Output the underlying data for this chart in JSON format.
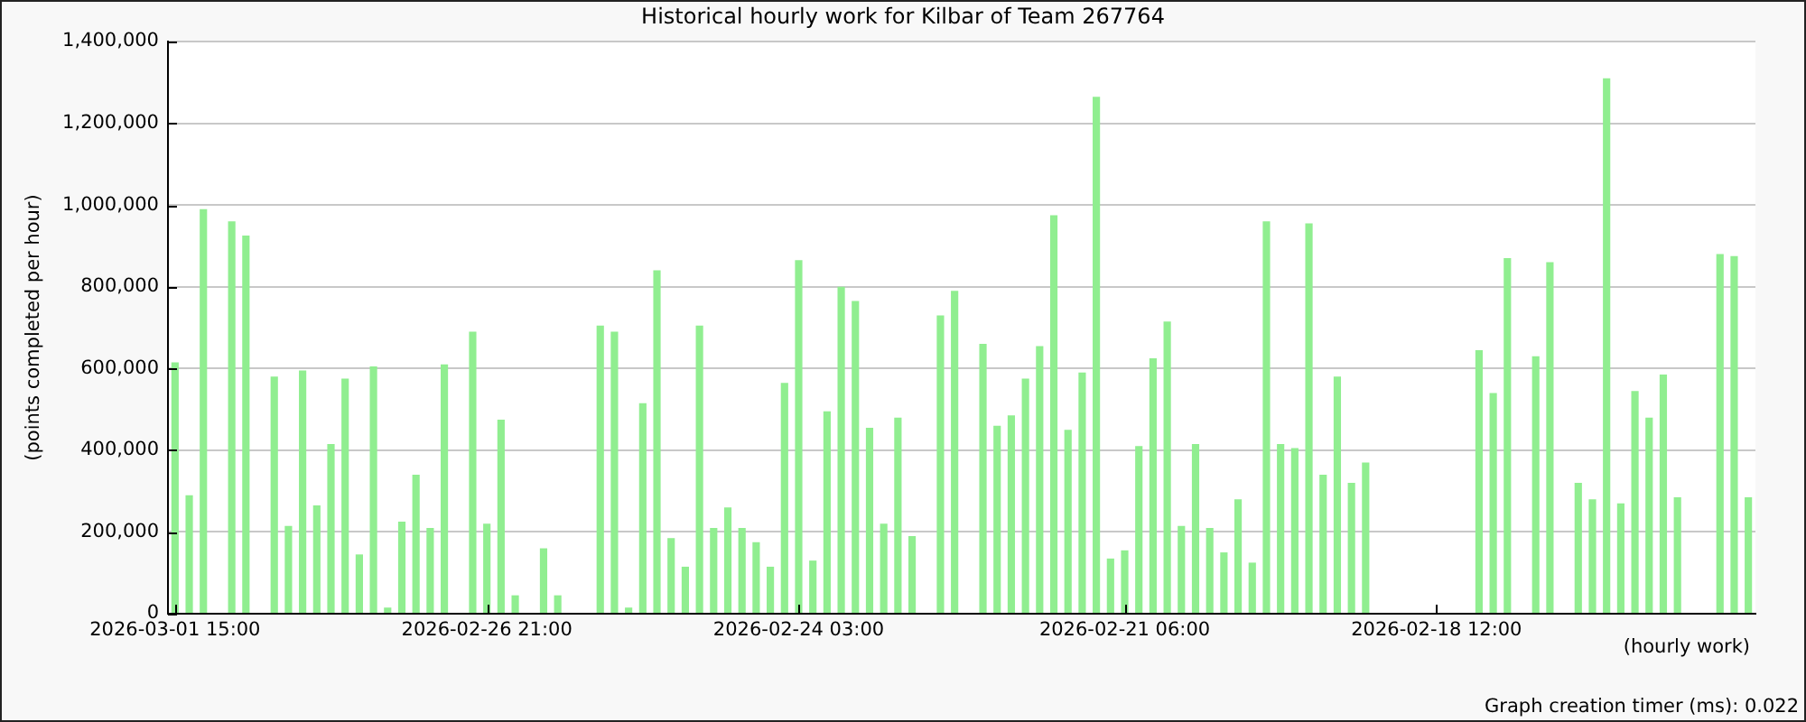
{
  "chart_data": {
    "type": "bar",
    "title": "Historical hourly work for Kilbar of Team 267764",
    "xlabel": "(hourly work)",
    "ylabel": "(points completed per hour)",
    "annotations": [
      "Graph creation timer (ms): 0.022"
    ],
    "categories": [
      "2026-03-01 15:00",
      null,
      null,
      null,
      null,
      null,
      null,
      null,
      null,
      null,
      null,
      null,
      null,
      null,
      null,
      null,
      null,
      null,
      null,
      null,
      null,
      null,
      "2026-02-26 21:00",
      null,
      null,
      null,
      null,
      null,
      null,
      null,
      null,
      null,
      null,
      null,
      null,
      null,
      null,
      null,
      null,
      null,
      null,
      null,
      null,
      null,
      "2026-02-24 03:00",
      null,
      null,
      null,
      null,
      null,
      null,
      null,
      null,
      null,
      null,
      null,
      null,
      null,
      null,
      null,
      null,
      null,
      null,
      null,
      null,
      null,
      null,
      "2026-02-21 06:00",
      null,
      null,
      null,
      null,
      null,
      null,
      null,
      null,
      null,
      null,
      null,
      null,
      null,
      null,
      null,
      null,
      null,
      null,
      null,
      null,
      null,
      "2026-02-18 12:00",
      null,
      null,
      null,
      null,
      null,
      null,
      null,
      null,
      null,
      null,
      null,
      null,
      null,
      null,
      null,
      null,
      null,
      null,
      null,
      null,
      null,
      null
    ],
    "values": [
      615000,
      290000,
      990000,
      null,
      960000,
      925000,
      null,
      580000,
      215000,
      595000,
      265000,
      415000,
      575000,
      145000,
      605000,
      15000,
      225000,
      340000,
      210000,
      610000,
      null,
      690000,
      220000,
      475000,
      45000,
      null,
      160000,
      45000,
      null,
      null,
      705000,
      690000,
      15000,
      515000,
      840000,
      185000,
      115000,
      705000,
      210000,
      260000,
      210000,
      175000,
      115000,
      565000,
      865000,
      130000,
      495000,
      800000,
      765000,
      455000,
      220000,
      480000,
      190000,
      null,
      730000,
      790000,
      null,
      660000,
      460000,
      485000,
      575000,
      655000,
      975000,
      450000,
      590000,
      1265000,
      135000,
      155000,
      410000,
      625000,
      715000,
      215000,
      415000,
      210000,
      150000,
      280000,
      125000,
      960000,
      415000,
      405000,
      955000,
      340000,
      580000,
      320000,
      370000,
      null,
      null,
      null,
      null,
      null,
      null,
      null,
      645000,
      540000,
      870000,
      null,
      630000,
      860000,
      null,
      320000,
      280000,
      1310000,
      270000,
      545000,
      480000,
      585000,
      285000,
      null,
      null,
      880000,
      875000,
      285000
    ],
    "color": "#90ee90",
    "ylim": [
      0,
      1400000
    ],
    "yticks": [
      {
        "value": 0,
        "label": "0"
      },
      {
        "value": 200000,
        "label": "200,000"
      },
      {
        "value": 400000,
        "label": "400,000"
      },
      {
        "value": 600000,
        "label": "600,000"
      },
      {
        "value": 800000,
        "label": "800,000"
      },
      {
        "value": 1000000,
        "label": "1,000,000"
      },
      {
        "value": 1200000,
        "label": "1,200,000"
      },
      {
        "value": 1400000,
        "label": "1,400,000"
      }
    ],
    "grid": "y"
  }
}
